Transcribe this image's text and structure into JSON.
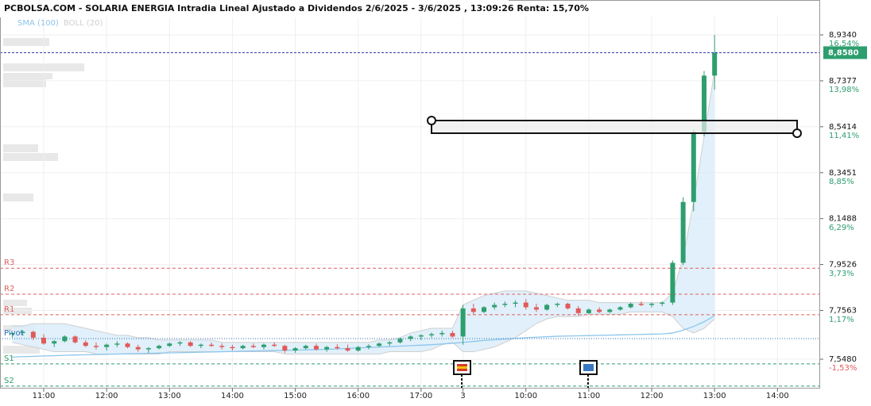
{
  "chart_data": {
    "type": "candlestick",
    "title": "PCBOLSA.COM - SOLARIA ENERGIA Intradia Lineal Ajustado a Dividendos 2/6/2025 - 3/6/2025 , 13:09:26 Renta: 15,70%",
    "up_color": "#2e9e6e",
    "down_color": "#e05a5a",
    "grid": true,
    "xlim": [
      -1.17,
      77.07
    ],
    "xticks": [
      {
        "value": 3,
        "label": "11:00"
      },
      {
        "value": 9,
        "label": "12:00"
      },
      {
        "value": 15,
        "label": "13:00"
      },
      {
        "value": 21,
        "label": "14:00"
      },
      {
        "value": 27,
        "label": "15:00"
      },
      {
        "value": 33,
        "label": "16:00"
      },
      {
        "value": 39,
        "label": "17:00"
      },
      {
        "value": 43,
        "label": "3"
      },
      {
        "value": 49,
        "label": "10:00"
      },
      {
        "value": 55,
        "label": "11:00"
      },
      {
        "value": 61,
        "label": "12:00"
      },
      {
        "value": 67,
        "label": "13:00"
      },
      {
        "value": 73,
        "label": "14:00"
      }
    ],
    "ylim": [
      7.4226,
      9.0153
    ],
    "yticks": [
      {
        "value": 7.548,
        "label": "7,5480"
      },
      {
        "value": 7.7563,
        "label": "7,7563"
      },
      {
        "value": 7.9526,
        "label": "7,9526"
      },
      {
        "value": 8.1488,
        "label": "8,1488"
      },
      {
        "value": 8.3451,
        "label": "8,3451"
      },
      {
        "value": 8.5414,
        "label": "8,5414"
      },
      {
        "value": 8.7377,
        "label": "8,7377"
      },
      {
        "value": 8.934,
        "label": "8,9340"
      }
    ],
    "y2lim": [
      -3.171,
      17.606
    ],
    "y2ticks": [
      {
        "value": -1.53,
        "label": "-1,53%"
      },
      {
        "value": 1.17,
        "label": "1,17%"
      },
      {
        "value": 3.73,
        "label": "3,73%"
      },
      {
        "value": 6.29,
        "label": "6,29%"
      },
      {
        "value": 8.85,
        "label": "8,85%"
      },
      {
        "value": 11.41,
        "label": "11,41%"
      },
      {
        "value": 13.98,
        "label": "13,98%"
      },
      {
        "value": 16.54,
        "label": "16,54%"
      }
    ],
    "last": {
      "value": 8.858,
      "label": "8,8580",
      "color": "#2e9e6e"
    },
    "pivots": [
      {
        "name": "R3",
        "value": 7.937,
        "color": "#e06060"
      },
      {
        "name": "R2",
        "value": 7.826,
        "color": "#e06060"
      },
      {
        "name": "R1",
        "value": 7.738,
        "color": "#e06060"
      },
      {
        "name": "Pivot",
        "value": 7.636,
        "color": "#2a6fb5"
      },
      {
        "name": "S1",
        "value": 7.528,
        "color": "#2e9e6e"
      },
      {
        "name": "S2",
        "value": 7.433,
        "color": "#2e9e6e"
      }
    ],
    "series": [
      {
        "name": "SMA (100)",
        "color": "#8cc6ec",
        "values": [
          7.557,
          7.559,
          7.56,
          7.562,
          7.563,
          7.565,
          7.566,
          7.567,
          7.568,
          7.569,
          7.57,
          7.571,
          7.572,
          7.573,
          7.574,
          7.575,
          7.576,
          7.577,
          7.578,
          7.579,
          7.58,
          7.581,
          7.582,
          7.583,
          7.584,
          7.585,
          7.586,
          7.587,
          7.588,
          7.589,
          7.59,
          7.592,
          7.594,
          7.596,
          7.598,
          7.6,
          7.602,
          7.604,
          7.606,
          7.608,
          7.61,
          7.613,
          7.616,
          7.62,
          7.624,
          7.628,
          7.631,
          7.634,
          7.637,
          7.64,
          7.642,
          7.644,
          7.646,
          7.647,
          7.648,
          7.649,
          7.65,
          7.651,
          7.652,
          7.653,
          7.654,
          7.655,
          7.656,
          7.66,
          7.672,
          7.688,
          7.708,
          7.734
        ]
      },
      {
        "name": "BOLL (20)",
        "color": "#cfcfcf",
        "fill": "#dcedf9",
        "upper": [
          7.69,
          7.69,
          7.7,
          7.7,
          7.7,
          7.7,
          7.69,
          7.68,
          7.67,
          7.66,
          7.65,
          7.65,
          7.64,
          7.64,
          7.63,
          7.63,
          7.63,
          7.63,
          7.63,
          7.63,
          7.62,
          7.62,
          7.62,
          7.62,
          7.62,
          7.62,
          7.62,
          7.62,
          7.62,
          7.62,
          7.62,
          7.62,
          7.62,
          7.62,
          7.62,
          7.63,
          7.63,
          7.64,
          7.66,
          7.67,
          7.68,
          7.68,
          7.68,
          7.78,
          7.8,
          7.82,
          7.83,
          7.84,
          7.84,
          7.84,
          7.83,
          7.82,
          7.81,
          7.8,
          7.8,
          7.8,
          7.79,
          7.79,
          7.79,
          7.79,
          7.79,
          7.79,
          7.79,
          7.83,
          7.98,
          8.22,
          8.5,
          8.78
        ],
        "lower": [
          7.62,
          7.61,
          7.6,
          7.59,
          7.58,
          7.58,
          7.58,
          7.58,
          7.57,
          7.57,
          7.57,
          7.57,
          7.57,
          7.57,
          7.57,
          7.58,
          7.58,
          7.58,
          7.58,
          7.58,
          7.58,
          7.58,
          7.58,
          7.58,
          7.58,
          7.58,
          7.57,
          7.57,
          7.57,
          7.57,
          7.57,
          7.57,
          7.57,
          7.57,
          7.57,
          7.57,
          7.58,
          7.58,
          7.58,
          7.58,
          7.59,
          7.61,
          7.62,
          7.58,
          7.58,
          7.59,
          7.6,
          7.62,
          7.64,
          7.67,
          7.7,
          7.72,
          7.73,
          7.73,
          7.73,
          7.74,
          7.74,
          7.74,
          7.74,
          7.75,
          7.75,
          7.75,
          7.75,
          7.73,
          7.68,
          7.66,
          7.68,
          7.72
        ]
      }
    ],
    "ohlc": [
      [
        7.655,
        7.665,
        7.64,
        7.66
      ],
      [
        7.66,
        7.672,
        7.65,
        7.665
      ],
      [
        7.665,
        7.67,
        7.63,
        7.64
      ],
      [
        7.64,
        7.655,
        7.61,
        7.615
      ],
      [
        7.615,
        7.63,
        7.6,
        7.625
      ],
      [
        7.625,
        7.65,
        7.62,
        7.645
      ],
      [
        7.645,
        7.65,
        7.615,
        7.62
      ],
      [
        7.62,
        7.63,
        7.6,
        7.605
      ],
      [
        7.605,
        7.62,
        7.59,
        7.6
      ],
      [
        7.6,
        7.615,
        7.585,
        7.61
      ],
      [
        7.61,
        7.625,
        7.6,
        7.615
      ],
      [
        7.615,
        7.62,
        7.595,
        7.6
      ],
      [
        7.6,
        7.61,
        7.58,
        7.59
      ],
      [
        7.59,
        7.6,
        7.575,
        7.595
      ],
      [
        7.595,
        7.61,
        7.59,
        7.605
      ],
      [
        7.605,
        7.62,
        7.6,
        7.615
      ],
      [
        7.615,
        7.625,
        7.605,
        7.62
      ],
      [
        7.62,
        7.625,
        7.6,
        7.605
      ],
      [
        7.605,
        7.615,
        7.595,
        7.61
      ],
      [
        7.61,
        7.62,
        7.6,
        7.605
      ],
      [
        7.605,
        7.615,
        7.59,
        7.6
      ],
      [
        7.6,
        7.61,
        7.585,
        7.595
      ],
      [
        7.595,
        7.61,
        7.59,
        7.605
      ],
      [
        7.605,
        7.615,
        7.595,
        7.6
      ],
      [
        7.6,
        7.615,
        7.59,
        7.61
      ],
      [
        7.61,
        7.62,
        7.6,
        7.605
      ],
      [
        7.605,
        7.61,
        7.575,
        7.585
      ],
      [
        7.585,
        7.6,
        7.575,
        7.595
      ],
      [
        7.595,
        7.61,
        7.59,
        7.605
      ],
      [
        7.605,
        7.615,
        7.585,
        7.59
      ],
      [
        7.59,
        7.605,
        7.58,
        7.6
      ],
      [
        7.6,
        7.612,
        7.59,
        7.595
      ],
      [
        7.595,
        7.61,
        7.58,
        7.585
      ],
      [
        7.585,
        7.605,
        7.58,
        7.6
      ],
      [
        7.6,
        7.612,
        7.59,
        7.605
      ],
      [
        7.605,
        7.62,
        7.6,
        7.615
      ],
      [
        7.615,
        7.625,
        7.605,
        7.62
      ],
      [
        7.62,
        7.64,
        7.615,
        7.635
      ],
      [
        7.635,
        7.65,
        7.625,
        7.645
      ],
      [
        7.645,
        7.655,
        7.63,
        7.65
      ],
      [
        7.65,
        7.662,
        7.64,
        7.655
      ],
      [
        7.655,
        7.67,
        7.645,
        7.66
      ],
      [
        7.66,
        7.67,
        7.64,
        7.645
      ],
      [
        7.645,
        7.78,
        7.61,
        7.765
      ],
      [
        7.765,
        7.785,
        7.74,
        7.75
      ],
      [
        7.75,
        7.775,
        7.745,
        7.77
      ],
      [
        7.77,
        7.79,
        7.76,
        7.78
      ],
      [
        7.78,
        7.795,
        7.77,
        7.785
      ],
      [
        7.785,
        7.8,
        7.77,
        7.79
      ],
      [
        7.79,
        7.805,
        7.76,
        7.77
      ],
      [
        7.77,
        7.785,
        7.75,
        7.76
      ],
      [
        7.76,
        7.785,
        7.755,
        7.78
      ],
      [
        7.78,
        7.79,
        7.77,
        7.785
      ],
      [
        7.785,
        7.79,
        7.76,
        7.765
      ],
      [
        7.765,
        7.775,
        7.735,
        7.745
      ],
      [
        7.745,
        7.765,
        7.74,
        7.76
      ],
      [
        7.76,
        7.77,
        7.745,
        7.75
      ],
      [
        7.75,
        7.765,
        7.745,
        7.76
      ],
      [
        7.76,
        7.775,
        7.755,
        7.77
      ],
      [
        7.77,
        7.79,
        7.765,
        7.785
      ],
      [
        7.785,
        7.795,
        7.775,
        7.78
      ],
      [
        7.78,
        7.79,
        7.77,
        7.785
      ],
      [
        7.785,
        7.795,
        7.775,
        7.79
      ],
      [
        7.79,
        7.97,
        7.78,
        7.96
      ],
      [
        7.96,
        8.24,
        7.95,
        8.22
      ],
      [
        8.22,
        8.53,
        8.18,
        8.52
      ],
      [
        8.52,
        8.78,
        8.5,
        8.76
      ],
      [
        8.76,
        8.934,
        8.7,
        8.858
      ]
    ]
  }
}
